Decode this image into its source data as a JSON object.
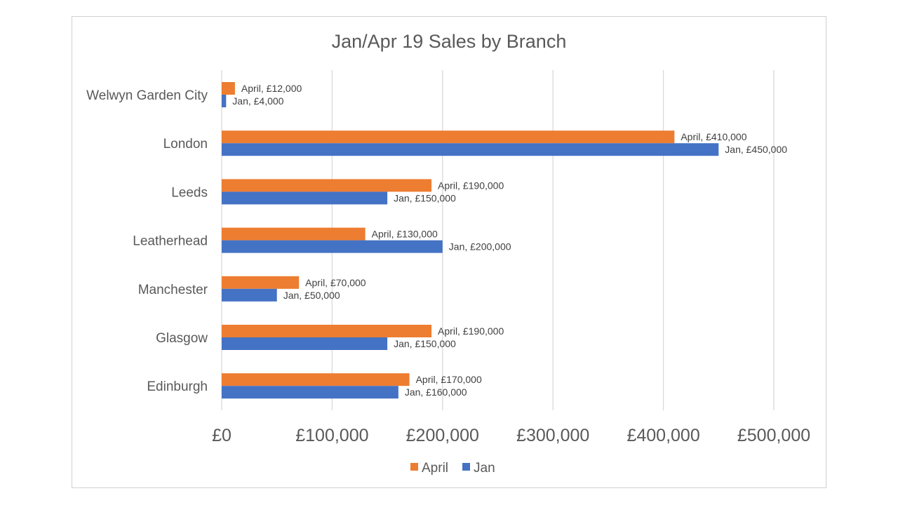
{
  "chart_data": {
    "type": "bar",
    "orientation": "horizontal",
    "title": "Jan/Apr 19 Sales by Branch",
    "categories": [
      "Welwyn Garden City",
      "London",
      "Leeds",
      "Leatherhead",
      "Manchester",
      "Glasgow",
      "Edinburgh"
    ],
    "series": [
      {
        "name": "April",
        "color": "#ed7d31",
        "values": [
          12000,
          410000,
          190000,
          130000,
          70000,
          190000,
          170000
        ],
        "labels": [
          "April, £12,000",
          "April, £410,000",
          "April, £190,000",
          "April, £130,000",
          "April, £70,000",
          "April, £190,000",
          "April, £170,000"
        ]
      },
      {
        "name": "Jan",
        "color": "#4472c4",
        "values": [
          4000,
          450000,
          150000,
          200000,
          50000,
          150000,
          160000
        ],
        "labels": [
          "Jan, £4,000",
          "Jan, £450,000",
          "Jan, £150,000",
          "Jan, £200,000",
          "Jan, £50,000",
          "Jan, £150,000",
          "Jan, £160,000"
        ]
      }
    ],
    "xlim": [
      0,
      500000
    ],
    "x_ticks": [
      0,
      100000,
      200000,
      300000,
      400000,
      500000
    ],
    "x_tick_labels": [
      "£0",
      "£100,000",
      "£200,000",
      "£300,000",
      "£400,000",
      "£500,000"
    ],
    "grid": "vertical",
    "legend": "bottom"
  }
}
